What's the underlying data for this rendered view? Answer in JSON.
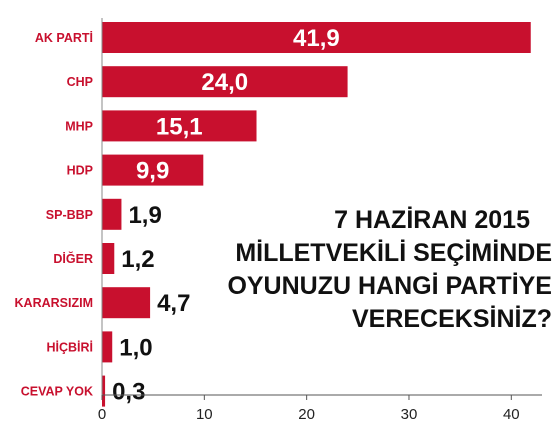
{
  "chart_data": {
    "type": "bar",
    "orientation": "horizontal",
    "categories": [
      "AK PARTİ",
      "CHP",
      "MHP",
      "HDP",
      "SP-BBP",
      "DİĞER",
      "KARARSIZIM",
      "HİÇBİRİ",
      "CEVAP YOK"
    ],
    "values": [
      41.9,
      24.0,
      15.1,
      9.9,
      1.9,
      1.2,
      4.7,
      1.0,
      0.3
    ],
    "value_labels": [
      "41,9",
      "24,0",
      "15,1",
      "9,9",
      "1,9",
      "1,2",
      "4,7",
      "1,0",
      "0,3"
    ],
    "xlim": [
      0,
      43
    ],
    "xticks": [
      0,
      10,
      20,
      30,
      40
    ],
    "grid": false,
    "legend": "none",
    "bar_color": "#c8102e",
    "title_lines": [
      "7 HAZİRAN 2015",
      "MİLLETVEKİLİ SEÇİMİNDE",
      "OYUNUZU HANGİ PARTİYE",
      "VERECEKSİNİZ?"
    ]
  }
}
